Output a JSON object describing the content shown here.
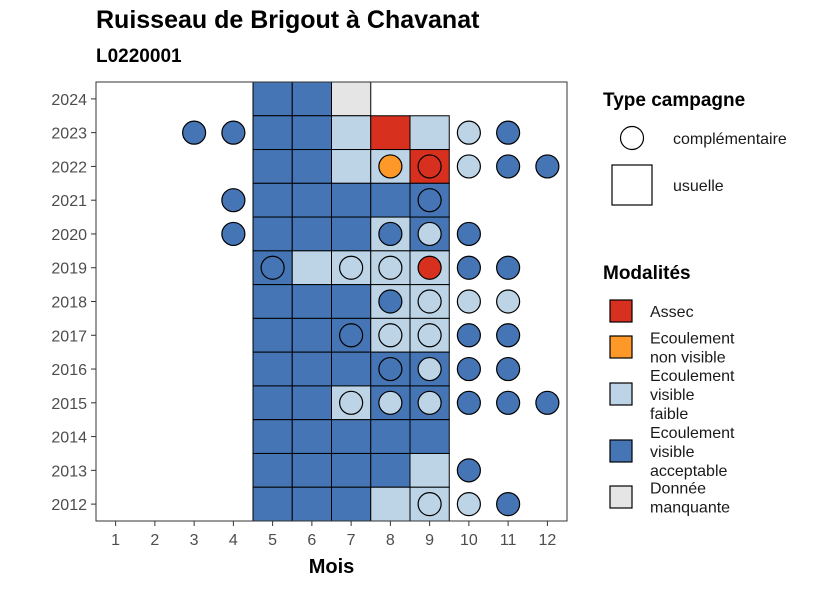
{
  "chart_data": {
    "type": "heatmap",
    "title": "Ruisseau de Brigout à Chavanat",
    "subtitle": "L0220001",
    "xlabel": "Mois",
    "ylabel": "",
    "x_ticks": [
      1,
      2,
      3,
      4,
      5,
      6,
      7,
      8,
      9,
      10,
      11,
      12
    ],
    "y_ticks": [
      2012,
      2013,
      2014,
      2015,
      2016,
      2017,
      2018,
      2019,
      2020,
      2021,
      2022,
      2023,
      2024
    ],
    "xlim": [
      0.5,
      12.5
    ],
    "ylim": [
      2011.5,
      2024.5
    ],
    "grid": false,
    "colors": {
      "Assec": "#d7301f",
      "Ecoulement non visible": "#fe9929",
      "Ecoulement visible faible": "#bcd4e6",
      "Ecoulement visible acceptable": "#4575b4",
      "Donnée manquante": "#e5e5e5"
    },
    "usuelle": [
      {
        "year": 2024,
        "month": 5,
        "mod": "Ecoulement visible acceptable"
      },
      {
        "year": 2024,
        "month": 6,
        "mod": "Ecoulement visible acceptable"
      },
      {
        "year": 2024,
        "month": 7,
        "mod": "Donnée manquante"
      },
      {
        "year": 2023,
        "month": 5,
        "mod": "Ecoulement visible acceptable"
      },
      {
        "year": 2023,
        "month": 6,
        "mod": "Ecoulement visible acceptable"
      },
      {
        "year": 2023,
        "month": 7,
        "mod": "Ecoulement visible faible"
      },
      {
        "year": 2023,
        "month": 8,
        "mod": "Assec"
      },
      {
        "year": 2023,
        "month": 9,
        "mod": "Ecoulement visible faible"
      },
      {
        "year": 2022,
        "month": 5,
        "mod": "Ecoulement visible acceptable"
      },
      {
        "year": 2022,
        "month": 6,
        "mod": "Ecoulement visible acceptable"
      },
      {
        "year": 2022,
        "month": 7,
        "mod": "Ecoulement visible faible"
      },
      {
        "year": 2022,
        "month": 8,
        "mod": "Ecoulement visible faible"
      },
      {
        "year": 2022,
        "month": 9,
        "mod": "Assec"
      },
      {
        "year": 2021,
        "month": 5,
        "mod": "Ecoulement visible acceptable"
      },
      {
        "year": 2021,
        "month": 6,
        "mod": "Ecoulement visible acceptable"
      },
      {
        "year": 2021,
        "month": 7,
        "mod": "Ecoulement visible acceptable"
      },
      {
        "year": 2021,
        "month": 8,
        "mod": "Ecoulement visible acceptable"
      },
      {
        "year": 2021,
        "month": 9,
        "mod": "Ecoulement visible acceptable"
      },
      {
        "year": 2020,
        "month": 5,
        "mod": "Ecoulement visible acceptable"
      },
      {
        "year": 2020,
        "month": 6,
        "mod": "Ecoulement visible acceptable"
      },
      {
        "year": 2020,
        "month": 7,
        "mod": "Ecoulement visible acceptable"
      },
      {
        "year": 2020,
        "month": 8,
        "mod": "Ecoulement visible faible"
      },
      {
        "year": 2020,
        "month": 9,
        "mod": "Ecoulement visible acceptable"
      },
      {
        "year": 2019,
        "month": 5,
        "mod": "Ecoulement visible acceptable"
      },
      {
        "year": 2019,
        "month": 6,
        "mod": "Ecoulement visible faible"
      },
      {
        "year": 2019,
        "month": 7,
        "mod": "Ecoulement visible faible"
      },
      {
        "year": 2019,
        "month": 8,
        "mod": "Ecoulement visible faible"
      },
      {
        "year": 2019,
        "month": 9,
        "mod": "Ecoulement visible faible"
      },
      {
        "year": 2018,
        "month": 5,
        "mod": "Ecoulement visible acceptable"
      },
      {
        "year": 2018,
        "month": 6,
        "mod": "Ecoulement visible acceptable"
      },
      {
        "year": 2018,
        "month": 7,
        "mod": "Ecoulement visible acceptable"
      },
      {
        "year": 2018,
        "month": 8,
        "mod": "Ecoulement visible faible"
      },
      {
        "year": 2018,
        "month": 9,
        "mod": "Ecoulement visible faible"
      },
      {
        "year": 2017,
        "month": 5,
        "mod": "Ecoulement visible acceptable"
      },
      {
        "year": 2017,
        "month": 6,
        "mod": "Ecoulement visible acceptable"
      },
      {
        "year": 2017,
        "month": 7,
        "mod": "Ecoulement visible acceptable"
      },
      {
        "year": 2017,
        "month": 8,
        "mod": "Ecoulement visible faible"
      },
      {
        "year": 2017,
        "month": 9,
        "mod": "Ecoulement visible faible"
      },
      {
        "year": 2016,
        "month": 5,
        "mod": "Ecoulement visible acceptable"
      },
      {
        "year": 2016,
        "month": 6,
        "mod": "Ecoulement visible acceptable"
      },
      {
        "year": 2016,
        "month": 7,
        "mod": "Ecoulement visible acceptable"
      },
      {
        "year": 2016,
        "month": 8,
        "mod": "Ecoulement visible acceptable"
      },
      {
        "year": 2016,
        "month": 9,
        "mod": "Ecoulement visible acceptable"
      },
      {
        "year": 2015,
        "month": 5,
        "mod": "Ecoulement visible acceptable"
      },
      {
        "year": 2015,
        "month": 6,
        "mod": "Ecoulement visible acceptable"
      },
      {
        "year": 2015,
        "month": 7,
        "mod": "Ecoulement visible faible"
      },
      {
        "year": 2015,
        "month": 8,
        "mod": "Ecoulement visible acceptable"
      },
      {
        "year": 2015,
        "month": 9,
        "mod": "Ecoulement visible acceptable"
      },
      {
        "year": 2014,
        "month": 5,
        "mod": "Ecoulement visible acceptable"
      },
      {
        "year": 2014,
        "month": 6,
        "mod": "Ecoulement visible acceptable"
      },
      {
        "year": 2014,
        "month": 7,
        "mod": "Ecoulement visible acceptable"
      },
      {
        "year": 2014,
        "month": 8,
        "mod": "Ecoulement visible acceptable"
      },
      {
        "year": 2014,
        "month": 9,
        "mod": "Ecoulement visible acceptable"
      },
      {
        "year": 2013,
        "month": 5,
        "mod": "Ecoulement visible acceptable"
      },
      {
        "year": 2013,
        "month": 6,
        "mod": "Ecoulement visible acceptable"
      },
      {
        "year": 2013,
        "month": 7,
        "mod": "Ecoulement visible acceptable"
      },
      {
        "year": 2013,
        "month": 8,
        "mod": "Ecoulement visible acceptable"
      },
      {
        "year": 2013,
        "month": 9,
        "mod": "Ecoulement visible faible"
      },
      {
        "year": 2012,
        "month": 5,
        "mod": "Ecoulement visible acceptable"
      },
      {
        "year": 2012,
        "month": 6,
        "mod": "Ecoulement visible acceptable"
      },
      {
        "year": 2012,
        "month": 7,
        "mod": "Ecoulement visible acceptable"
      },
      {
        "year": 2012,
        "month": 8,
        "mod": "Ecoulement visible faible"
      },
      {
        "year": 2012,
        "month": 9,
        "mod": "Ecoulement visible faible"
      }
    ],
    "complementaire": [
      {
        "year": 2023,
        "month": 3,
        "mod": "Ecoulement visible acceptable"
      },
      {
        "year": 2023,
        "month": 4,
        "mod": "Ecoulement visible acceptable"
      },
      {
        "year": 2023,
        "month": 10,
        "mod": "Ecoulement visible faible"
      },
      {
        "year": 2023,
        "month": 11,
        "mod": "Ecoulement visible acceptable"
      },
      {
        "year": 2022,
        "month": 8,
        "mod": "Ecoulement non visible"
      },
      {
        "year": 2022,
        "month": 9,
        "mod": "Assec"
      },
      {
        "year": 2022,
        "month": 10,
        "mod": "Ecoulement visible faible"
      },
      {
        "year": 2022,
        "month": 11,
        "mod": "Ecoulement visible acceptable"
      },
      {
        "year": 2022,
        "month": 12,
        "mod": "Ecoulement visible acceptable"
      },
      {
        "year": 2021,
        "month": 4,
        "mod": "Ecoulement visible acceptable"
      },
      {
        "year": 2021,
        "month": 9,
        "mod": "Ecoulement visible acceptable"
      },
      {
        "year": 2020,
        "month": 4,
        "mod": "Ecoulement visible acceptable"
      },
      {
        "year": 2020,
        "month": 8,
        "mod": "Ecoulement visible acceptable"
      },
      {
        "year": 2020,
        "month": 9,
        "mod": "Ecoulement visible faible"
      },
      {
        "year": 2020,
        "month": 10,
        "mod": "Ecoulement visible acceptable"
      },
      {
        "year": 2019,
        "month": 5,
        "mod": "Ecoulement visible acceptable"
      },
      {
        "year": 2019,
        "month": 7,
        "mod": "Ecoulement visible faible"
      },
      {
        "year": 2019,
        "month": 8,
        "mod": "Ecoulement visible faible"
      },
      {
        "year": 2019,
        "month": 9,
        "mod": "Assec"
      },
      {
        "year": 2019,
        "month": 10,
        "mod": "Ecoulement visible acceptable"
      },
      {
        "year": 2019,
        "month": 11,
        "mod": "Ecoulement visible acceptable"
      },
      {
        "year": 2018,
        "month": 8,
        "mod": "Ecoulement visible acceptable"
      },
      {
        "year": 2018,
        "month": 9,
        "mod": "Ecoulement visible faible"
      },
      {
        "year": 2018,
        "month": 10,
        "mod": "Ecoulement visible faible"
      },
      {
        "year": 2018,
        "month": 11,
        "mod": "Ecoulement visible faible"
      },
      {
        "year": 2017,
        "month": 7,
        "mod": "Ecoulement visible acceptable"
      },
      {
        "year": 2017,
        "month": 8,
        "mod": "Ecoulement visible faible"
      },
      {
        "year": 2017,
        "month": 9,
        "mod": "Ecoulement visible faible"
      },
      {
        "year": 2017,
        "month": 10,
        "mod": "Ecoulement visible acceptable"
      },
      {
        "year": 2017,
        "month": 11,
        "mod": "Ecoulement visible acceptable"
      },
      {
        "year": 2016,
        "month": 8,
        "mod": "Ecoulement visible acceptable"
      },
      {
        "year": 2016,
        "month": 9,
        "mod": "Ecoulement visible faible"
      },
      {
        "year": 2016,
        "month": 10,
        "mod": "Ecoulement visible acceptable"
      },
      {
        "year": 2016,
        "month": 11,
        "mod": "Ecoulement visible acceptable"
      },
      {
        "year": 2015,
        "month": 7,
        "mod": "Ecoulement visible faible"
      },
      {
        "year": 2015,
        "month": 8,
        "mod": "Ecoulement visible faible"
      },
      {
        "year": 2015,
        "month": 9,
        "mod": "Ecoulement visible faible"
      },
      {
        "year": 2015,
        "month": 10,
        "mod": "Ecoulement visible acceptable"
      },
      {
        "year": 2015,
        "month": 11,
        "mod": "Ecoulement visible acceptable"
      },
      {
        "year": 2015,
        "month": 12,
        "mod": "Ecoulement visible acceptable"
      },
      {
        "year": 2013,
        "month": 10,
        "mod": "Ecoulement visible acceptable"
      },
      {
        "year": 2012,
        "month": 9,
        "mod": "Ecoulement visible faible"
      },
      {
        "year": 2012,
        "month": 10,
        "mod": "Ecoulement visible faible"
      },
      {
        "year": 2012,
        "month": 11,
        "mod": "Ecoulement visible acceptable"
      }
    ],
    "legend": {
      "placement": "right",
      "type_title": "Type campagne",
      "type_entries": [
        "complémentaire",
        "usuelle"
      ],
      "mod_title": "Modalités",
      "mod_entries": [
        {
          "key": "Assec",
          "lines": [
            "Assec"
          ]
        },
        {
          "key": "Ecoulement non visible",
          "lines": [
            "Ecoulement",
            "non visible"
          ]
        },
        {
          "key": "Ecoulement visible faible",
          "lines": [
            "Ecoulement",
            "visible",
            "faible"
          ]
        },
        {
          "key": "Ecoulement visible acceptable",
          "lines": [
            "Ecoulement",
            "visible",
            "acceptable"
          ]
        },
        {
          "key": "Donnée manquante",
          "lines": [
            "Donnée",
            "manquante"
          ]
        }
      ]
    }
  }
}
